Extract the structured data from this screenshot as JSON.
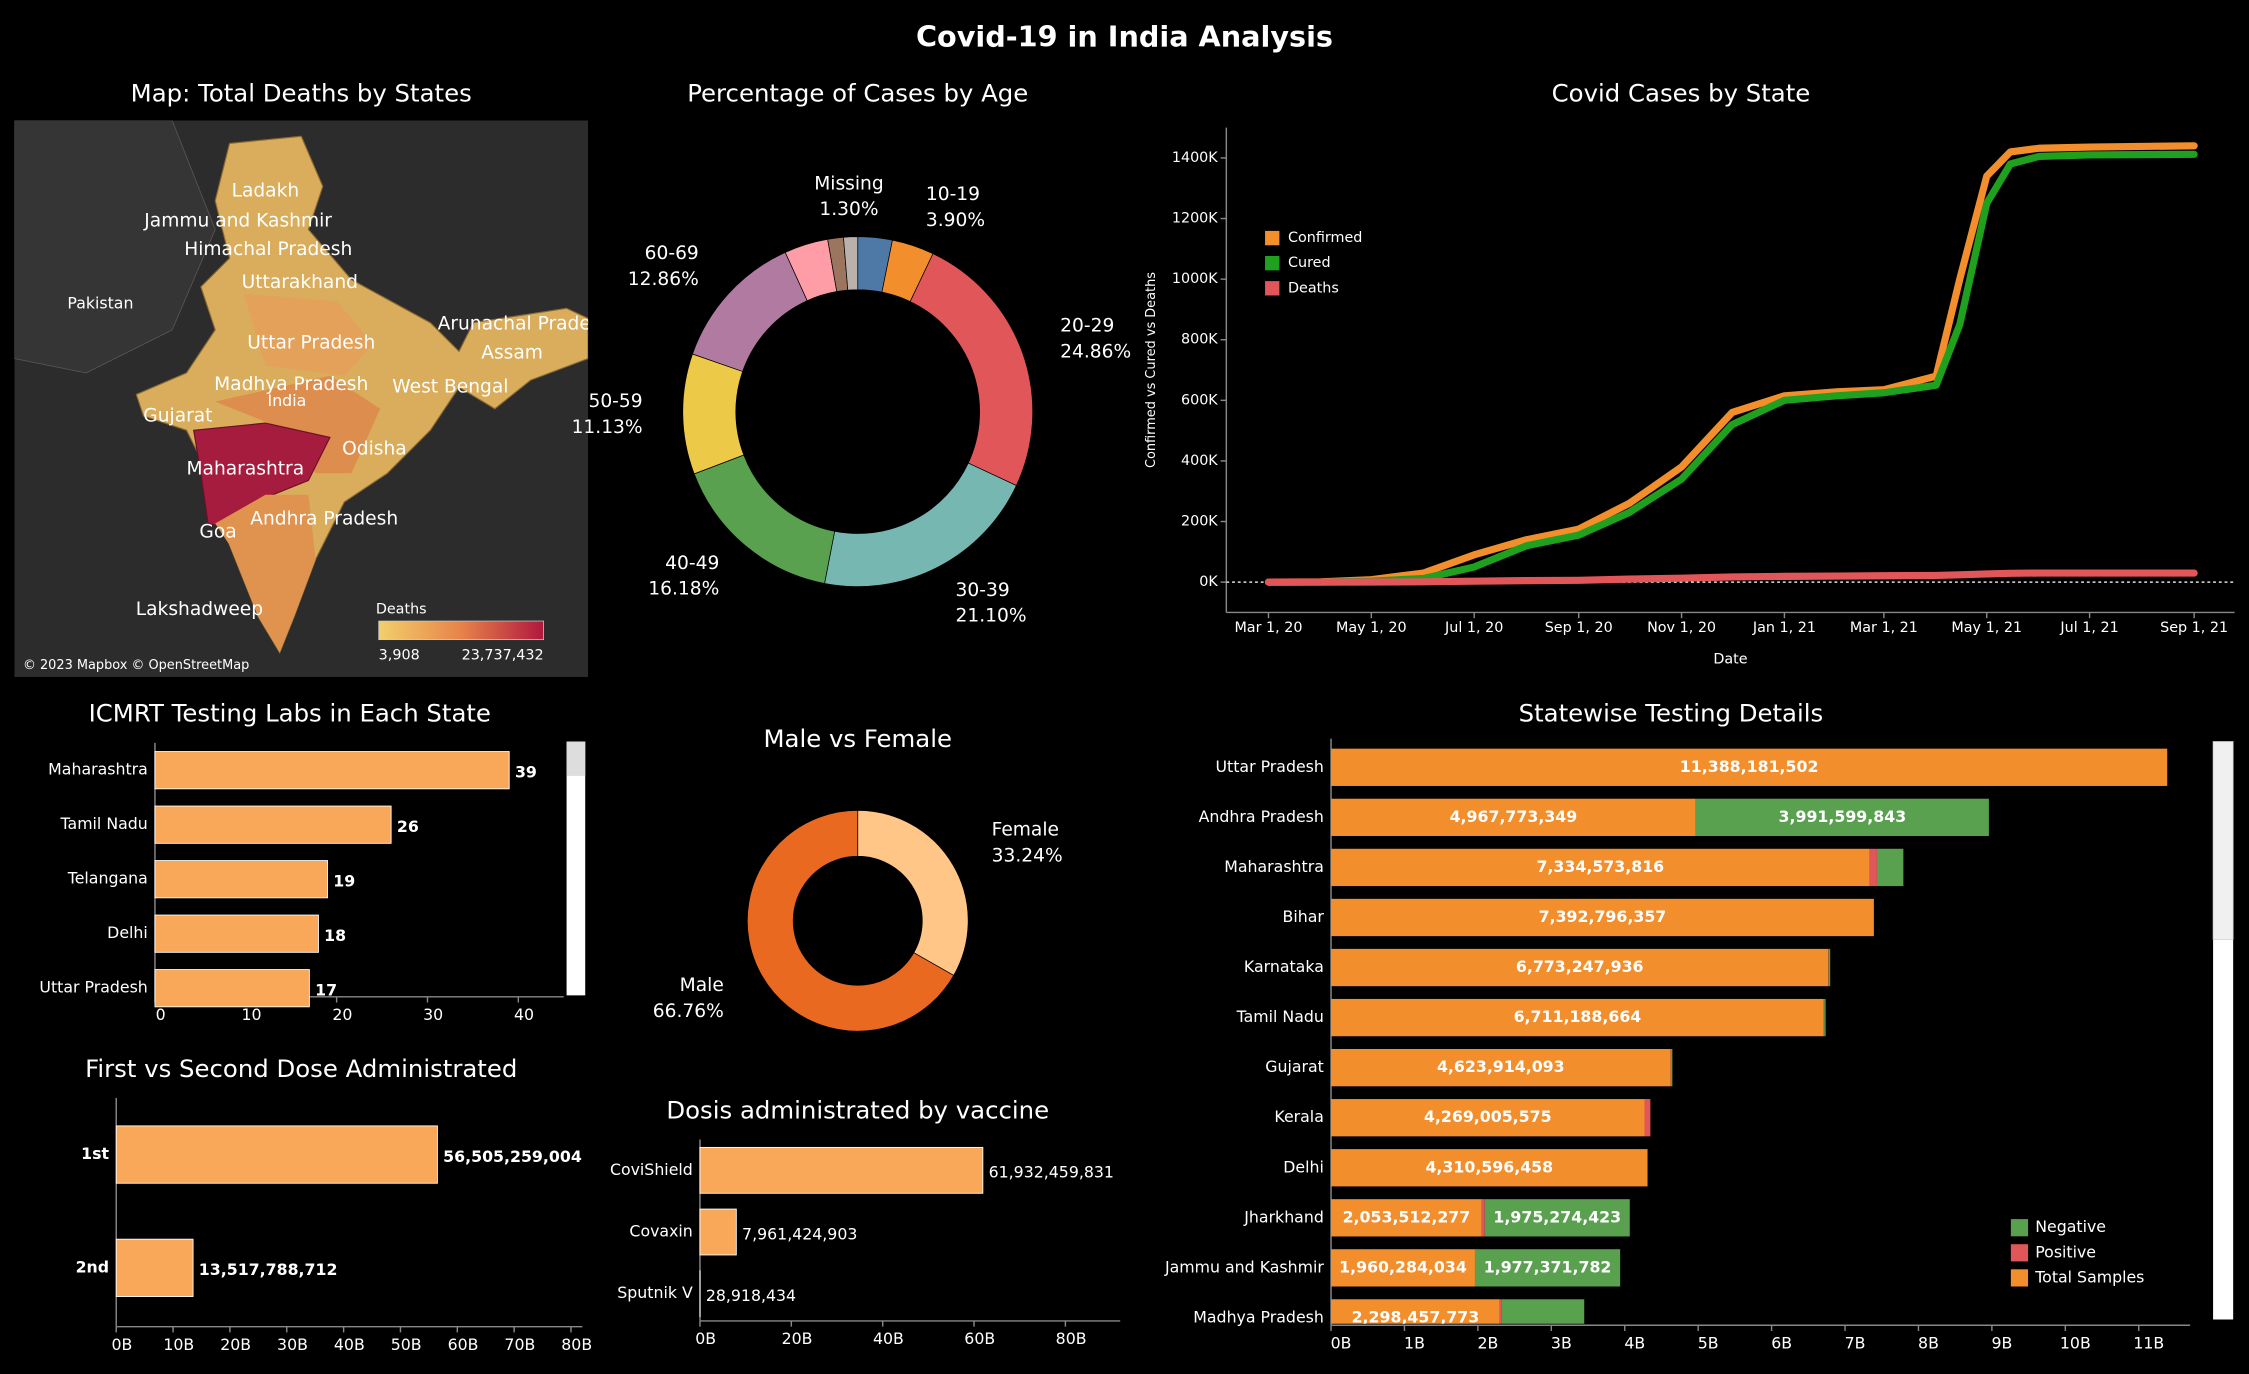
{
  "title": "Covid-19 in India Analysis",
  "chart_data": [
    {
      "type": "map",
      "title": "Map: Total Deaths by States",
      "labels": [
        "Ladakh",
        "Jammu and Kashmir",
        "Himachal Pradesh",
        "Uttarakhand",
        "Pakistan",
        "Arunachal Pradesh",
        "Assam",
        "Uttar Pradesh",
        "Madhya Pradesh",
        "West Bengal",
        "India",
        "Gujarat",
        "Odisha",
        "Maharashtra",
        "Andhra Pradesh",
        "Goa",
        "Lakshadweep"
      ],
      "legend_title": "Deaths",
      "range": [
        {
          "value": 3908,
          "label": "3,908"
        },
        {
          "value": 23737432,
          "label": "23,737,432"
        }
      ],
      "colors": [
        "#f2d06b",
        "#e7834a",
        "#b0173e"
      ],
      "attribution": "© 2023 Mapbox © OpenStreetMap"
    },
    {
      "type": "donut",
      "title": "Percentage of Cases by Age",
      "categories": [
        null,
        "10-19",
        "20-29",
        "30-39",
        "40-49",
        "50-59",
        "60-69",
        null,
        null,
        "Missing"
      ],
      "values": [
        3.18,
        3.9,
        24.86,
        21.1,
        16.18,
        11.13,
        12.86,
        4.05,
        1.45,
        1.3
      ],
      "value_labels": [
        null,
        "3.90%",
        "24.86%",
        "21.10%",
        "16.18%",
        "11.13%",
        "12.86%",
        null,
        null,
        "1.30%"
      ],
      "colors": [
        "#4e79a7",
        "#f28e2b",
        "#e15759",
        "#76b7b2",
        "#59a14f",
        "#edc948",
        "#b07aa1",
        "#ff9da7",
        "#9c755f",
        "#bab0ac"
      ]
    },
    {
      "type": "line",
      "title": "Covid Cases by State",
      "x_label": "Date",
      "y_label": "Confirmed vs Cured vs Deaths",
      "x": [
        "2020-03-01",
        "2020-04-01",
        "2020-05-01",
        "2020-06-01",
        "2020-07-01",
        "2020-08-01",
        "2020-09-01",
        "2020-10-01",
        "2020-11-01",
        "2020-12-01",
        "2021-01-01",
        "2021-02-01",
        "2021-03-01",
        "2021-04-01",
        "2021-04-15",
        "2021-05-01",
        "2021-05-15",
        "2021-06-01",
        "2021-07-01",
        "2021-09-01"
      ],
      "series": [
        {
          "name": "Confirmed",
          "color": "#f28e2b",
          "values": [
            0,
            1000,
            8000,
            30000,
            90000,
            140000,
            175000,
            260000,
            380000,
            560000,
            615000,
            628000,
            635000,
            680000,
            1000000,
            1340000,
            1420000,
            1432000,
            1436000,
            1440000
          ]
        },
        {
          "name": "Cured",
          "color": "#1fa01f",
          "values": [
            0,
            200,
            3000,
            12000,
            50000,
            120000,
            155000,
            230000,
            340000,
            520000,
            600000,
            615000,
            625000,
            650000,
            850000,
            1250000,
            1380000,
            1405000,
            1410000,
            1412000
          ]
        },
        {
          "name": "Deaths",
          "color": "#e15759",
          "values": [
            0,
            50,
            400,
            1000,
            3000,
            5000,
            6000,
            10000,
            13000,
            17000,
            19000,
            20000,
            21000,
            22000,
            24000,
            27000,
            29000,
            30000,
            30000,
            30000
          ]
        }
      ],
      "xlim": [
        "2020-02-05",
        "2021-09-25"
      ],
      "xticks": [
        {
          "value": "2020-03-01",
          "label": "Mar 1, 20"
        },
        {
          "value": "2020-05-01",
          "label": "May 1, 20"
        },
        {
          "value": "2020-07-01",
          "label": "Jul 1, 20"
        },
        {
          "value": "2020-09-01",
          "label": "Sep 1, 20"
        },
        {
          "value": "2020-11-01",
          "label": "Nov 1, 20"
        },
        {
          "value": "2021-01-01",
          "label": "Jan 1, 21"
        },
        {
          "value": "2021-03-01",
          "label": "Mar 1, 21"
        },
        {
          "value": "2021-05-01",
          "label": "May 1, 21"
        },
        {
          "value": "2021-07-01",
          "label": "Jul 1, 21"
        },
        {
          "value": "2021-09-01",
          "label": "Sep 1, 21"
        }
      ],
      "ylim": [
        -100000,
        1500000
      ],
      "yticks": [
        {
          "value": 0,
          "label": "0K"
        },
        {
          "value": 200000,
          "label": "200K"
        },
        {
          "value": 400000,
          "label": "400K"
        },
        {
          "value": 600000,
          "label": "600K"
        },
        {
          "value": 800000,
          "label": "800K"
        },
        {
          "value": 1000000,
          "label": "1000K"
        },
        {
          "value": 1200000,
          "label": "1200K"
        },
        {
          "value": 1400000,
          "label": "1400K"
        }
      ],
      "zero_line": true,
      "legend": "upper left"
    },
    {
      "type": "hbar",
      "title": "ICMRT Testing Labs in Each State",
      "categories": [
        "Maharashtra",
        "Tamil Nadu",
        "Telangana",
        "Delhi",
        "Uttar Pradesh"
      ],
      "values": [
        39,
        26,
        19,
        18,
        17
      ],
      "color": "#f9a85a",
      "xlim": [
        0,
        45
      ],
      "xticks": [
        0,
        10,
        20,
        30,
        40
      ]
    },
    {
      "type": "hbar",
      "title": "First vs Second Dose Administrated",
      "categories": [
        "1st",
        "2nd"
      ],
      "values": [
        56505259004,
        13517788712
      ],
      "value_labels": [
        "56,505,259,004",
        "13,517,788,712"
      ],
      "color": "#f9a85a",
      "xlim": [
        0,
        82000000000
      ],
      "xticks": [
        {
          "value": 0,
          "label": "0B"
        },
        {
          "value": 10000000000,
          "label": "10B"
        },
        {
          "value": 20000000000,
          "label": "20B"
        },
        {
          "value": 30000000000,
          "label": "30B"
        },
        {
          "value": 40000000000,
          "label": "40B"
        },
        {
          "value": 50000000000,
          "label": "50B"
        },
        {
          "value": 60000000000,
          "label": "60B"
        },
        {
          "value": 70000000000,
          "label": "70B"
        },
        {
          "value": 80000000000,
          "label": "80B"
        }
      ]
    },
    {
      "type": "donut",
      "title": "Male vs Female",
      "categories": [
        "Female",
        "Male"
      ],
      "values": [
        33.24,
        66.76
      ],
      "value_labels": [
        "33.24%",
        "66.76%"
      ],
      "colors": [
        "#ffc687",
        "#e8691f"
      ]
    },
    {
      "type": "hbar",
      "title": "Dosis administrated by vaccine",
      "categories": [
        "CoviShield",
        "Covaxin",
        "Sputnik V"
      ],
      "values": [
        61932459831,
        7961424903,
        28918434
      ],
      "value_labels": [
        "61,932,459,831",
        "7,961,424,903",
        "28,918,434"
      ],
      "color": "#f9a85a",
      "xlim": [
        0,
        92000000000
      ],
      "xticks": [
        {
          "value": 0,
          "label": "0B"
        },
        {
          "value": 20000000000,
          "label": "20B"
        },
        {
          "value": 40000000000,
          "label": "40B"
        },
        {
          "value": 60000000000,
          "label": "60B"
        },
        {
          "value": 80000000000,
          "label": "80B"
        }
      ]
    },
    {
      "type": "stackedbar",
      "title": "Statewise Testing Details",
      "categories": [
        "Uttar Pradesh",
        "Andhra Pradesh",
        "Maharashtra",
        "Bihar",
        "Karnataka",
        "Tamil Nadu",
        "Gujarat",
        "Kerala",
        "Delhi",
        "Jharkhand",
        "Jammu and Kashmir",
        "Madhya Pradesh"
      ],
      "series": [
        {
          "name": "Total Samples",
          "color": "#f28e2b",
          "values": [
            11388181502,
            4967773349,
            7334573816,
            7392796357,
            6773247936,
            6711188664,
            4623914093,
            4269005575,
            4310596458,
            2053512277,
            1960284034,
            2298457773
          ],
          "value_labels": [
            "11,388,181,502",
            "4,967,773,349",
            "7,334,573,816",
            "7,392,796,357",
            "6,773,247,936",
            "6,711,188,664",
            "4,623,914,093",
            "4,269,005,575",
            "4,310,596,458",
            "2,053,512,277",
            "1,960,284,034",
            "2,298,457,773"
          ]
        },
        {
          "name": "Positive",
          "color": "#e15759",
          "values": [
            0,
            0,
            100000000,
            0,
            5000000,
            5000000,
            5000000,
            80000000,
            0,
            40000000,
            0,
            20000000
          ]
        },
        {
          "name": "Negative",
          "color": "#59a14f",
          "values": [
            0,
            3991599843,
            360000000,
            0,
            20000000,
            20000000,
            20000000,
            0,
            0,
            1975274423,
            1977371782,
            1130000000
          ],
          "value_labels": [
            null,
            "3,991,599,843",
            null,
            null,
            null,
            null,
            null,
            null,
            null,
            "1,975,274,423",
            "1,977,371,782",
            null
          ]
        }
      ],
      "xlim": [
        0,
        11700000000
      ],
      "xticks": [
        {
          "value": 0,
          "label": "0B"
        },
        {
          "value": 1000000000,
          "label": "1B"
        },
        {
          "value": 2000000000,
          "label": "2B"
        },
        {
          "value": 3000000000,
          "label": "3B"
        },
        {
          "value": 4000000000,
          "label": "4B"
        },
        {
          "value": 5000000000,
          "label": "5B"
        },
        {
          "value": 6000000000,
          "label": "6B"
        },
        {
          "value": 7000000000,
          "label": "7B"
        },
        {
          "value": 8000000000,
          "label": "8B"
        },
        {
          "value": 9000000000,
          "label": "9B"
        },
        {
          "value": 10000000000,
          "label": "10B"
        },
        {
          "value": 11000000000,
          "label": "11B"
        }
      ],
      "legend": "lower right"
    }
  ]
}
